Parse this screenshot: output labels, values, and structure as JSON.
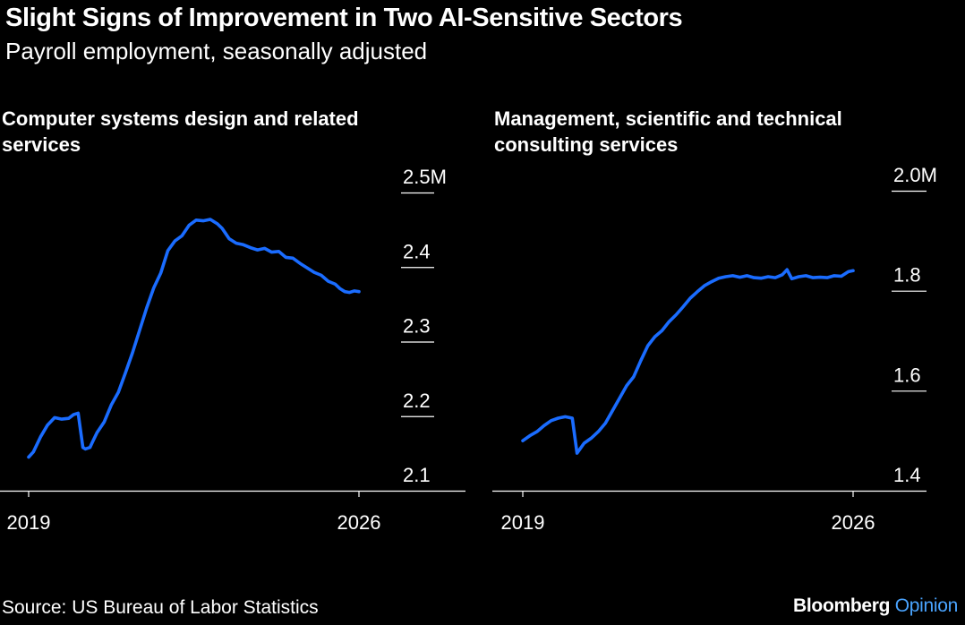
{
  "header": {
    "title": "Slight Signs of Improvement in Two AI-Sensitive Sectors",
    "subtitle": "Payroll employment, seasonally adjusted"
  },
  "footer": {
    "source": "Source: US Bureau of Labor Statistics",
    "brand_main": "Bloomberg",
    "brand_accent": "Opinion"
  },
  "colors": {
    "background": "#000000",
    "line": "#1a6cff",
    "text": "#ffffff",
    "accent": "#4aa4ff"
  },
  "chart_data": [
    {
      "type": "line",
      "title_line1": "Computer systems design and related",
      "title_line2": "services",
      "y_unit": "M",
      "ylim": [
        2.1,
        2.5
      ],
      "yticks": [
        {
          "value": 2.5,
          "label": "2.5M"
        },
        {
          "value": 2.4,
          "label": "2.4"
        },
        {
          "value": 2.3,
          "label": "2.3"
        },
        {
          "value": 2.2,
          "label": "2.2"
        },
        {
          "value": 2.1,
          "label": "2.1"
        }
      ],
      "xlim": [
        2019,
        2026
      ],
      "xticks": [
        {
          "value": 2019,
          "label": "2019"
        },
        {
          "value": 2026,
          "label": "2026"
        }
      ],
      "grid": false,
      "series": [
        {
          "x": [
            2019.0,
            2019.1,
            2019.25,
            2019.4,
            2019.55,
            2019.7,
            2019.85,
            2019.95,
            2020.05,
            2020.15,
            2020.2,
            2020.3,
            2020.35,
            2020.45,
            2020.6,
            2020.75,
            2020.9,
            2021.05,
            2021.2,
            2021.35,
            2021.5,
            2021.65,
            2021.8,
            2021.95,
            2022.1,
            2022.25,
            2022.4,
            2022.55,
            2022.7,
            2022.85,
            2023.0,
            2023.1,
            2023.25,
            2023.4,
            2023.55,
            2023.7,
            2023.85,
            2024.0,
            2024.15,
            2024.3,
            2024.45,
            2024.6,
            2024.75,
            2024.9,
            2025.05,
            2025.2,
            2025.35,
            2025.5,
            2025.6,
            2025.7,
            2025.8,
            2025.9,
            2026.0
          ],
          "values": [
            2.145,
            2.152,
            2.172,
            2.188,
            2.198,
            2.196,
            2.197,
            2.202,
            2.204,
            2.158,
            2.156,
            2.158,
            2.165,
            2.178,
            2.192,
            2.215,
            2.232,
            2.258,
            2.285,
            2.315,
            2.345,
            2.372,
            2.392,
            2.422,
            2.435,
            2.442,
            2.456,
            2.463,
            2.462,
            2.464,
            2.458,
            2.452,
            2.438,
            2.432,
            2.43,
            2.426,
            2.423,
            2.425,
            2.42,
            2.421,
            2.413,
            2.412,
            2.405,
            2.399,
            2.393,
            2.389,
            2.381,
            2.377,
            2.371,
            2.367,
            2.366,
            2.368,
            2.367
          ]
        }
      ]
    },
    {
      "type": "line",
      "title_line1": "Management, scientific and technical",
      "title_line2": "consulting services",
      "y_unit": "M",
      "ylim": [
        1.4,
        2.0
      ],
      "yticks": [
        {
          "value": 2.0,
          "label": "2.0M"
        },
        {
          "value": 1.8,
          "label": "1.8"
        },
        {
          "value": 1.6,
          "label": "1.6"
        },
        {
          "value": 1.4,
          "label": "1.4"
        }
      ],
      "xlim": [
        2019,
        2026
      ],
      "xticks": [
        {
          "value": 2019,
          "label": "2019"
        },
        {
          "value": 2026,
          "label": "2026"
        }
      ],
      "grid": false,
      "series": [
        {
          "x": [
            2019.0,
            2019.15,
            2019.3,
            2019.45,
            2019.6,
            2019.75,
            2019.9,
            2020.05,
            2020.15,
            2020.3,
            2020.45,
            2020.6,
            2020.75,
            2020.9,
            2021.05,
            2021.2,
            2021.35,
            2021.5,
            2021.65,
            2021.8,
            2021.95,
            2022.1,
            2022.25,
            2022.4,
            2022.55,
            2022.7,
            2022.85,
            2023.0,
            2023.15,
            2023.3,
            2023.45,
            2023.6,
            2023.75,
            2023.9,
            2024.05,
            2024.2,
            2024.35,
            2024.5,
            2024.6,
            2024.7,
            2024.85,
            2025.0,
            2025.15,
            2025.3,
            2025.45,
            2025.6,
            2025.75,
            2025.9,
            2026.0
          ],
          "values": [
            1.5,
            1.51,
            1.518,
            1.53,
            1.54,
            1.545,
            1.548,
            1.545,
            1.475,
            1.495,
            1.505,
            1.518,
            1.535,
            1.56,
            1.585,
            1.61,
            1.628,
            1.66,
            1.69,
            1.708,
            1.72,
            1.738,
            1.752,
            1.768,
            1.785,
            1.798,
            1.81,
            1.818,
            1.825,
            1.828,
            1.83,
            1.827,
            1.83,
            1.826,
            1.825,
            1.828,
            1.826,
            1.832,
            1.842,
            1.824,
            1.828,
            1.83,
            1.826,
            1.827,
            1.826,
            1.83,
            1.829,
            1.838,
            1.84
          ]
        }
      ]
    }
  ]
}
